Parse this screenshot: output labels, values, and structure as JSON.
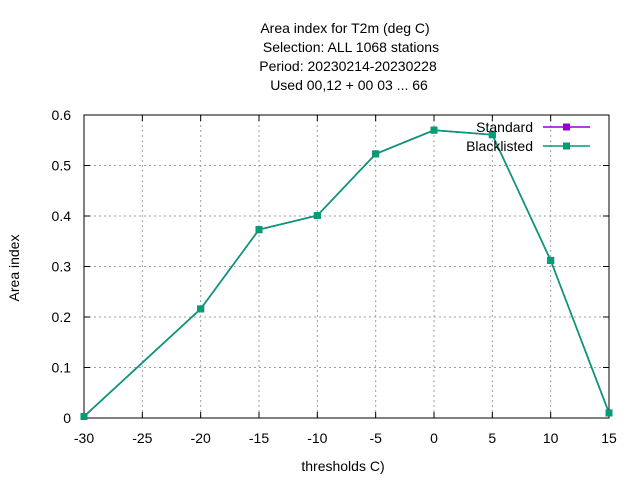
{
  "chart_data": {
    "type": "line",
    "title_lines": [
      "Area index  for T2m (deg C)",
      "Selection: ALL   1068 stations",
      "Period: 20230214-20230228",
      "Used  00,12  + 00 03 ... 66"
    ],
    "xlabel": "thresholds C)",
    "ylabel": "Area index",
    "xlim": [
      -30,
      15
    ],
    "ylim": [
      0,
      0.6
    ],
    "xticks": [
      "-30",
      "-25",
      "-20",
      "-15",
      "-10",
      "-5",
      "0",
      "5",
      "10",
      "15"
    ],
    "yticks": [
      "0",
      "0.1",
      "0.2",
      "0.3",
      "0.4",
      "0.5",
      "0.6"
    ],
    "grid": true,
    "legend_position": "top-right",
    "x": [
      -30,
      -20,
      -15,
      -10,
      -5,
      0,
      5,
      10,
      15
    ],
    "series": [
      {
        "name": "Standard",
        "color": "#9400d3",
        "values": [
          0.003,
          0.216,
          0.373,
          0.401,
          0.523,
          0.57,
          0.561,
          0.312,
          0.01
        ]
      },
      {
        "name": "Blacklisted",
        "color": "#009e73",
        "values": [
          0.003,
          0.216,
          0.373,
          0.401,
          0.523,
          0.57,
          0.561,
          0.312,
          0.01
        ]
      }
    ]
  }
}
